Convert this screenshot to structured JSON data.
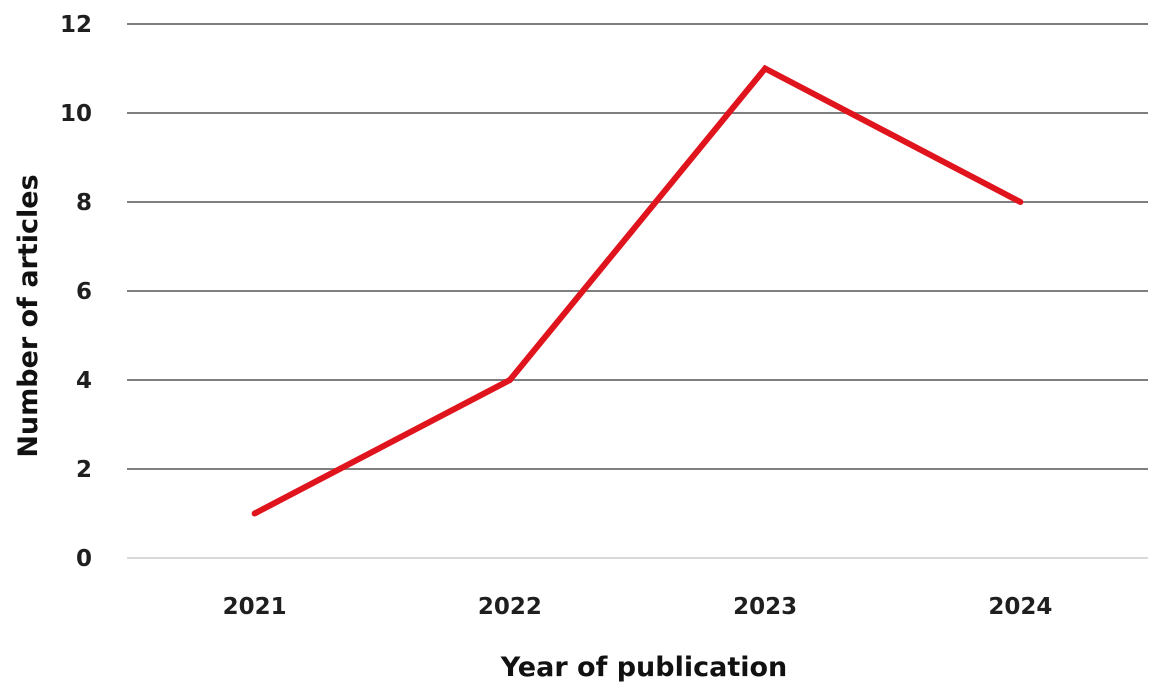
{
  "chart_data": {
    "type": "line",
    "categories": [
      "2021",
      "2022",
      "2023",
      "2024"
    ],
    "series": [
      {
        "values": [
          1,
          4,
          11,
          8
        ]
      }
    ],
    "title": "",
    "xlabel": "Year of publication",
    "ylabel": "Number of articles",
    "ylim": [
      0,
      12
    ],
    "yticks": [
      "0",
      "2",
      "4",
      "6",
      "8",
      "10",
      "12"
    ],
    "grid": true,
    "line_color": "#e0141c",
    "grid_color": "#7f7f7f",
    "legend": "none"
  }
}
